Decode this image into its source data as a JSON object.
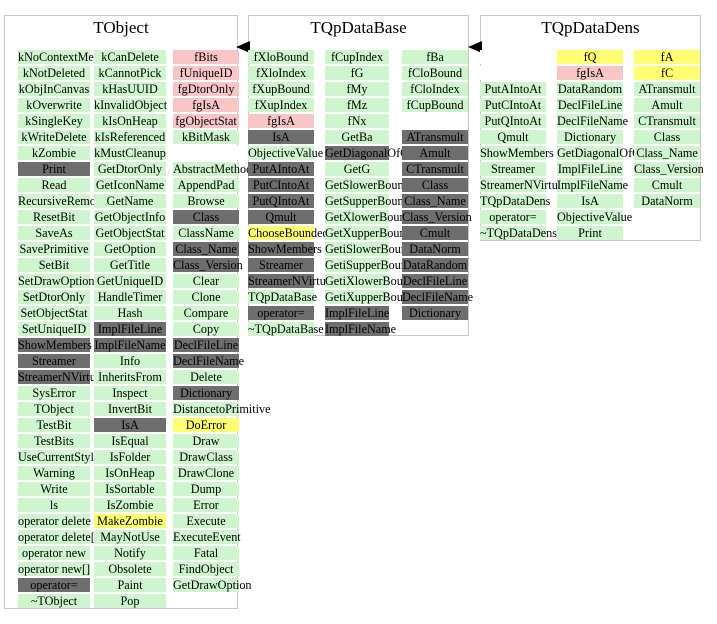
{
  "colors": {
    "g": "#cff5cf",
    "d": "#6e6e6e",
    "p": "#f8c6c6",
    "y": "#ffff74",
    "w": "#ffffff",
    "panel_border": "#c8c8c8",
    "arrow": "#000000"
  },
  "panels": [
    {
      "title": "TObject",
      "columns": [
        [
          [
            "kNoContextMenu",
            "g"
          ],
          [
            "kNotDeleted",
            "g"
          ],
          [
            "kObjInCanvas",
            "g"
          ],
          [
            "kOverwrite",
            "g"
          ],
          [
            "kSingleKey",
            "g"
          ],
          [
            "kWriteDelete",
            "g"
          ],
          [
            "kZombie",
            "g"
          ],
          [
            "Print",
            "d"
          ],
          [
            "Read",
            "g"
          ],
          [
            "RecursiveRemove",
            "g"
          ],
          [
            "ResetBit",
            "g"
          ],
          [
            "SaveAs",
            "g"
          ],
          [
            "SavePrimitive",
            "g"
          ],
          [
            "SetBit",
            "g"
          ],
          [
            "SetDrawOption",
            "g"
          ],
          [
            "SetDtorOnly",
            "g"
          ],
          [
            "SetObjectStat",
            "g"
          ],
          [
            "SetUniqueID",
            "g"
          ],
          [
            "ShowMembers",
            "d"
          ],
          [
            "Streamer",
            "d"
          ],
          [
            "StreamerNVirtual",
            "d"
          ],
          [
            "SysError",
            "g"
          ],
          [
            "TObject",
            "g"
          ],
          [
            "TestBit",
            "g"
          ],
          [
            "TestBits",
            "g"
          ],
          [
            "UseCurrentStyle",
            "g"
          ],
          [
            "Warning",
            "g"
          ],
          [
            "Write",
            "g"
          ],
          [
            "ls",
            "g"
          ],
          [
            "operator delete",
            "g"
          ],
          [
            "operator delete[]",
            "g"
          ],
          [
            "operator new",
            "g"
          ],
          [
            "operator new[]",
            "g"
          ],
          [
            "operator=",
            "d"
          ],
          [
            "~TObject",
            "g"
          ]
        ],
        [
          [
            "kCanDelete",
            "g"
          ],
          [
            "kCannotPick",
            "g"
          ],
          [
            "kHasUUID",
            "g"
          ],
          [
            "kInvalidObject",
            "g"
          ],
          [
            "kIsOnHeap",
            "g"
          ],
          [
            "kIsReferenced",
            "g"
          ],
          [
            "kMustCleanup",
            "g"
          ],
          [
            "GetDtorOnly",
            "g"
          ],
          [
            "GetIconName",
            "g"
          ],
          [
            "GetName",
            "g"
          ],
          [
            "GetObjectInfo",
            "g"
          ],
          [
            "GetObjectStat",
            "g"
          ],
          [
            "GetOption",
            "g"
          ],
          [
            "GetTitle",
            "g"
          ],
          [
            "GetUniqueID",
            "g"
          ],
          [
            "HandleTimer",
            "g"
          ],
          [
            "Hash",
            "g"
          ],
          [
            "ImplFileLine",
            "d"
          ],
          [
            "ImplFileName",
            "d"
          ],
          [
            "Info",
            "g"
          ],
          [
            "InheritsFrom",
            "g"
          ],
          [
            "Inspect",
            "g"
          ],
          [
            "InvertBit",
            "g"
          ],
          [
            "IsA",
            "d"
          ],
          [
            "IsEqual",
            "g"
          ],
          [
            "IsFolder",
            "g"
          ],
          [
            "IsOnHeap",
            "g"
          ],
          [
            "IsSortable",
            "g"
          ],
          [
            "IsZombie",
            "g"
          ],
          [
            "MakeZombie",
            "y"
          ],
          [
            "MayNotUse",
            "g"
          ],
          [
            "Notify",
            "g"
          ],
          [
            "Obsolete",
            "g"
          ],
          [
            "Paint",
            "g"
          ],
          [
            "Pop",
            "g"
          ]
        ],
        [
          [
            "fBits",
            "p"
          ],
          [
            "fUniqueID",
            "p"
          ],
          [
            "fgDtorOnly",
            "p"
          ],
          [
            "fgIsA",
            "p"
          ],
          [
            "fgObjectStat",
            "p"
          ],
          [
            "kBitMask",
            "g"
          ],
          [
            "",
            "w"
          ],
          [
            "AbstractMethod",
            "g"
          ],
          [
            "AppendPad",
            "g"
          ],
          [
            "Browse",
            "g"
          ],
          [
            "Class",
            "d"
          ],
          [
            "ClassName",
            "g"
          ],
          [
            "Class_Name",
            "d"
          ],
          [
            "Class_Version",
            "d"
          ],
          [
            "Clear",
            "g"
          ],
          [
            "Clone",
            "g"
          ],
          [
            "Compare",
            "g"
          ],
          [
            "Copy",
            "g"
          ],
          [
            "DeclFileLine",
            "d"
          ],
          [
            "DeclFileName",
            "d"
          ],
          [
            "Delete",
            "g"
          ],
          [
            "Dictionary",
            "d"
          ],
          [
            "DistancetoPrimitive",
            "g"
          ],
          [
            "DoError",
            "y"
          ],
          [
            "Draw",
            "g"
          ],
          [
            "DrawClass",
            "g"
          ],
          [
            "DrawClone",
            "g"
          ],
          [
            "Dump",
            "g"
          ],
          [
            "Error",
            "g"
          ],
          [
            "Execute",
            "g"
          ],
          [
            "ExecuteEvent",
            "g"
          ],
          [
            "Fatal",
            "g"
          ],
          [
            "FindObject",
            "g"
          ],
          [
            "GetDrawOption",
            "g"
          ]
        ]
      ]
    },
    {
      "title": "TQpDataBase",
      "columns": [
        [
          [
            "fXloBound",
            "g"
          ],
          [
            "fXloIndex",
            "g"
          ],
          [
            "fXupBound",
            "g"
          ],
          [
            "fXupIndex",
            "g"
          ],
          [
            "fgIsA",
            "p"
          ],
          [
            "IsA",
            "d"
          ],
          [
            "ObjectiveValue",
            "g"
          ],
          [
            "PutAIntoAt",
            "d"
          ],
          [
            "PutCIntoAt",
            "d"
          ],
          [
            "PutQIntoAt",
            "d"
          ],
          [
            "Qmult",
            "d"
          ],
          [
            "ChooseBoundedXnumber",
            "y"
          ],
          [
            "ShowMembers",
            "d"
          ],
          [
            "Streamer",
            "d"
          ],
          [
            "StreamerNVirtual",
            "d"
          ],
          [
            "TQpDataBase",
            "g"
          ],
          [
            "operator=",
            "d"
          ],
          [
            "~TQpDataBase",
            "g"
          ]
        ],
        [
          [
            "fCupIndex",
            "g"
          ],
          [
            "fG",
            "g"
          ],
          [
            "fMy",
            "g"
          ],
          [
            "fMz",
            "g"
          ],
          [
            "fNx",
            "g"
          ],
          [
            "GetBa",
            "g"
          ],
          [
            "GetDiagonalOfQ",
            "d"
          ],
          [
            "GetG",
            "g"
          ],
          [
            "GetSlowerBound",
            "g"
          ],
          [
            "GetSupperBound",
            "g"
          ],
          [
            "GetXlowerBound",
            "g"
          ],
          [
            "GetXupperBound",
            "g"
          ],
          [
            "GetiSlowerBound",
            "g"
          ],
          [
            "GetiSupperBound",
            "g"
          ],
          [
            "GetiXlowerBound",
            "g"
          ],
          [
            "GetiXupperBound",
            "g"
          ],
          [
            "ImplFileLine",
            "d"
          ],
          [
            "ImplFileName",
            "d"
          ]
        ],
        [
          [
            "fBa",
            "g"
          ],
          [
            "fCloBound",
            "g"
          ],
          [
            "fCloIndex",
            "g"
          ],
          [
            "fCupBound",
            "g"
          ],
          [
            "",
            "w"
          ],
          [
            "ATransmult",
            "d"
          ],
          [
            "Amult",
            "d"
          ],
          [
            "CTransmult",
            "d"
          ],
          [
            "Class",
            "d"
          ],
          [
            "Class_Name",
            "d"
          ],
          [
            "Class_Version",
            "d"
          ],
          [
            "Cmult",
            "d"
          ],
          [
            "DataNorm",
            "d"
          ],
          [
            "DataRandom",
            "d"
          ],
          [
            "DeclFileLine",
            "d"
          ],
          [
            "DeclFileName",
            "d"
          ],
          [
            "Dictionary",
            "d"
          ]
        ]
      ]
    },
    {
      "title": "TQpDataDens",
      "columns": [
        [
          [
            "",
            "w"
          ],
          [
            "",
            "w"
          ],
          [
            "PutAIntoAt",
            "g"
          ],
          [
            "PutCIntoAt",
            "g"
          ],
          [
            "PutQIntoAt",
            "g"
          ],
          [
            "Qmult",
            "g"
          ],
          [
            "ShowMembers",
            "g"
          ],
          [
            "Streamer",
            "g"
          ],
          [
            "StreamerNVirtual",
            "g"
          ],
          [
            "TQpDataDens",
            "g"
          ],
          [
            "operator=",
            "g"
          ],
          [
            "~TQpDataDens",
            "g"
          ]
        ],
        [
          [
            "fQ",
            "y"
          ],
          [
            "fgIsA",
            "p"
          ],
          [
            "DataRandom",
            "g"
          ],
          [
            "DeclFileLine",
            "g"
          ],
          [
            "DeclFileName",
            "g"
          ],
          [
            "Dictionary",
            "g"
          ],
          [
            "GetDiagonalOfQ",
            "g"
          ],
          [
            "ImplFileLine",
            "g"
          ],
          [
            "ImplFileName",
            "g"
          ],
          [
            "IsA",
            "g"
          ],
          [
            "ObjectiveValue",
            "g"
          ],
          [
            "Print",
            "g"
          ]
        ],
        [
          [
            "fA",
            "y"
          ],
          [
            "fC",
            "y"
          ],
          [
            "ATransmult",
            "g"
          ],
          [
            "Amult",
            "g"
          ],
          [
            "CTransmult",
            "g"
          ],
          [
            "Class",
            "g"
          ],
          [
            "Class_Name",
            "g"
          ],
          [
            "Class_Version",
            "g"
          ],
          [
            "Cmult",
            "g"
          ],
          [
            "DataNorm",
            "g"
          ]
        ]
      ]
    }
  ]
}
